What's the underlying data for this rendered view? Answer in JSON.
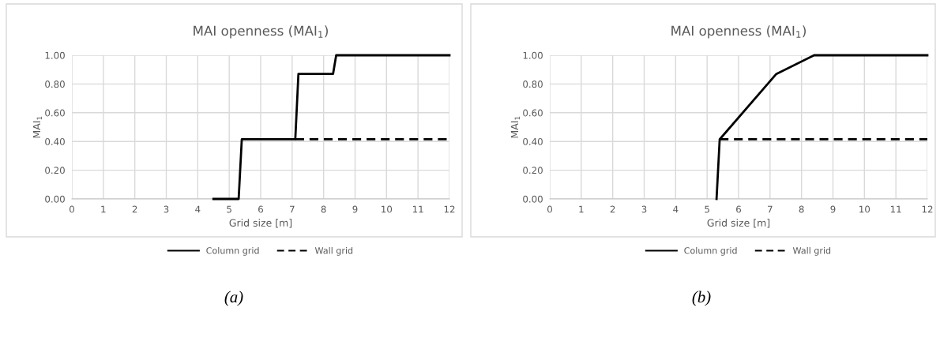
{
  "chart_data": [
    {
      "type": "line",
      "title": "MAI openness (MAI$_{1}$)",
      "xlabel": "Grid size [m]",
      "ylabel": "MAI$_{1}$",
      "xlim": [
        0,
        12
      ],
      "xticks": [
        0,
        1,
        2,
        3,
        4,
        5,
        6,
        7,
        8,
        9,
        10,
        11,
        12
      ],
      "ylim": [
        0,
        1
      ],
      "yticks": [
        {
          "value": 0,
          "label": "0.00"
        },
        {
          "value": 0.2,
          "label": "0.20"
        },
        {
          "value": 0.4,
          "label": "0.40"
        },
        {
          "value": 0.6,
          "label": "0.60"
        },
        {
          "value": 0.8,
          "label": "0.80"
        },
        {
          "value": 1,
          "label": "1.00"
        }
      ],
      "grid": true,
      "legend": "bottom",
      "marker": "none",
      "series": [
        {
          "name": "Column grid",
          "color": "#000000",
          "line_style": "solid",
          "x": [
            4.5,
            5.3,
            5.4,
            7.1,
            7.2,
            8.3,
            8.4,
            12
          ],
          "values": [
            0,
            0,
            0.415,
            0.415,
            0.87,
            0.87,
            1,
            1
          ]
        },
        {
          "name": "Wall grid",
          "color": "#000000",
          "line_style": "dashed",
          "x": [
            7.1,
            12
          ],
          "values": [
            0.415,
            0.415
          ]
        }
      ],
      "annotations": [
        "(a)"
      ]
    },
    {
      "type": "line",
      "title": "MAI openness (MAI$_{1}$)",
      "xlabel": "Grid size [m]",
      "ylabel": "MAI$_{1}$",
      "xlim": [
        0,
        12
      ],
      "xticks": [
        0,
        1,
        2,
        3,
        4,
        5,
        6,
        7,
        8,
        9,
        10,
        11,
        12
      ],
      "ylim": [
        0,
        1
      ],
      "yticks": [
        {
          "value": 0,
          "label": "0.00"
        },
        {
          "value": 0.2,
          "label": "0.20"
        },
        {
          "value": 0.4,
          "label": "0.40"
        },
        {
          "value": 0.6,
          "label": "0.60"
        },
        {
          "value": 0.8,
          "label": "0.80"
        },
        {
          "value": 1,
          "label": "1.00"
        }
      ],
      "grid": true,
      "legend": "bottom",
      "marker": "none",
      "series": [
        {
          "name": "Column grid",
          "color": "#000000",
          "line_style": "solid",
          "x": [
            5.3,
            5.4,
            7.2,
            8.4,
            12
          ],
          "values": [
            0,
            0.415,
            0.87,
            1,
            1
          ]
        },
        {
          "name": "Wall grid",
          "color": "#000000",
          "line_style": "dashed",
          "x": [
            5.4,
            12
          ],
          "values": [
            0.415,
            0.415
          ]
        }
      ],
      "annotations": [
        "(b)"
      ]
    }
  ]
}
